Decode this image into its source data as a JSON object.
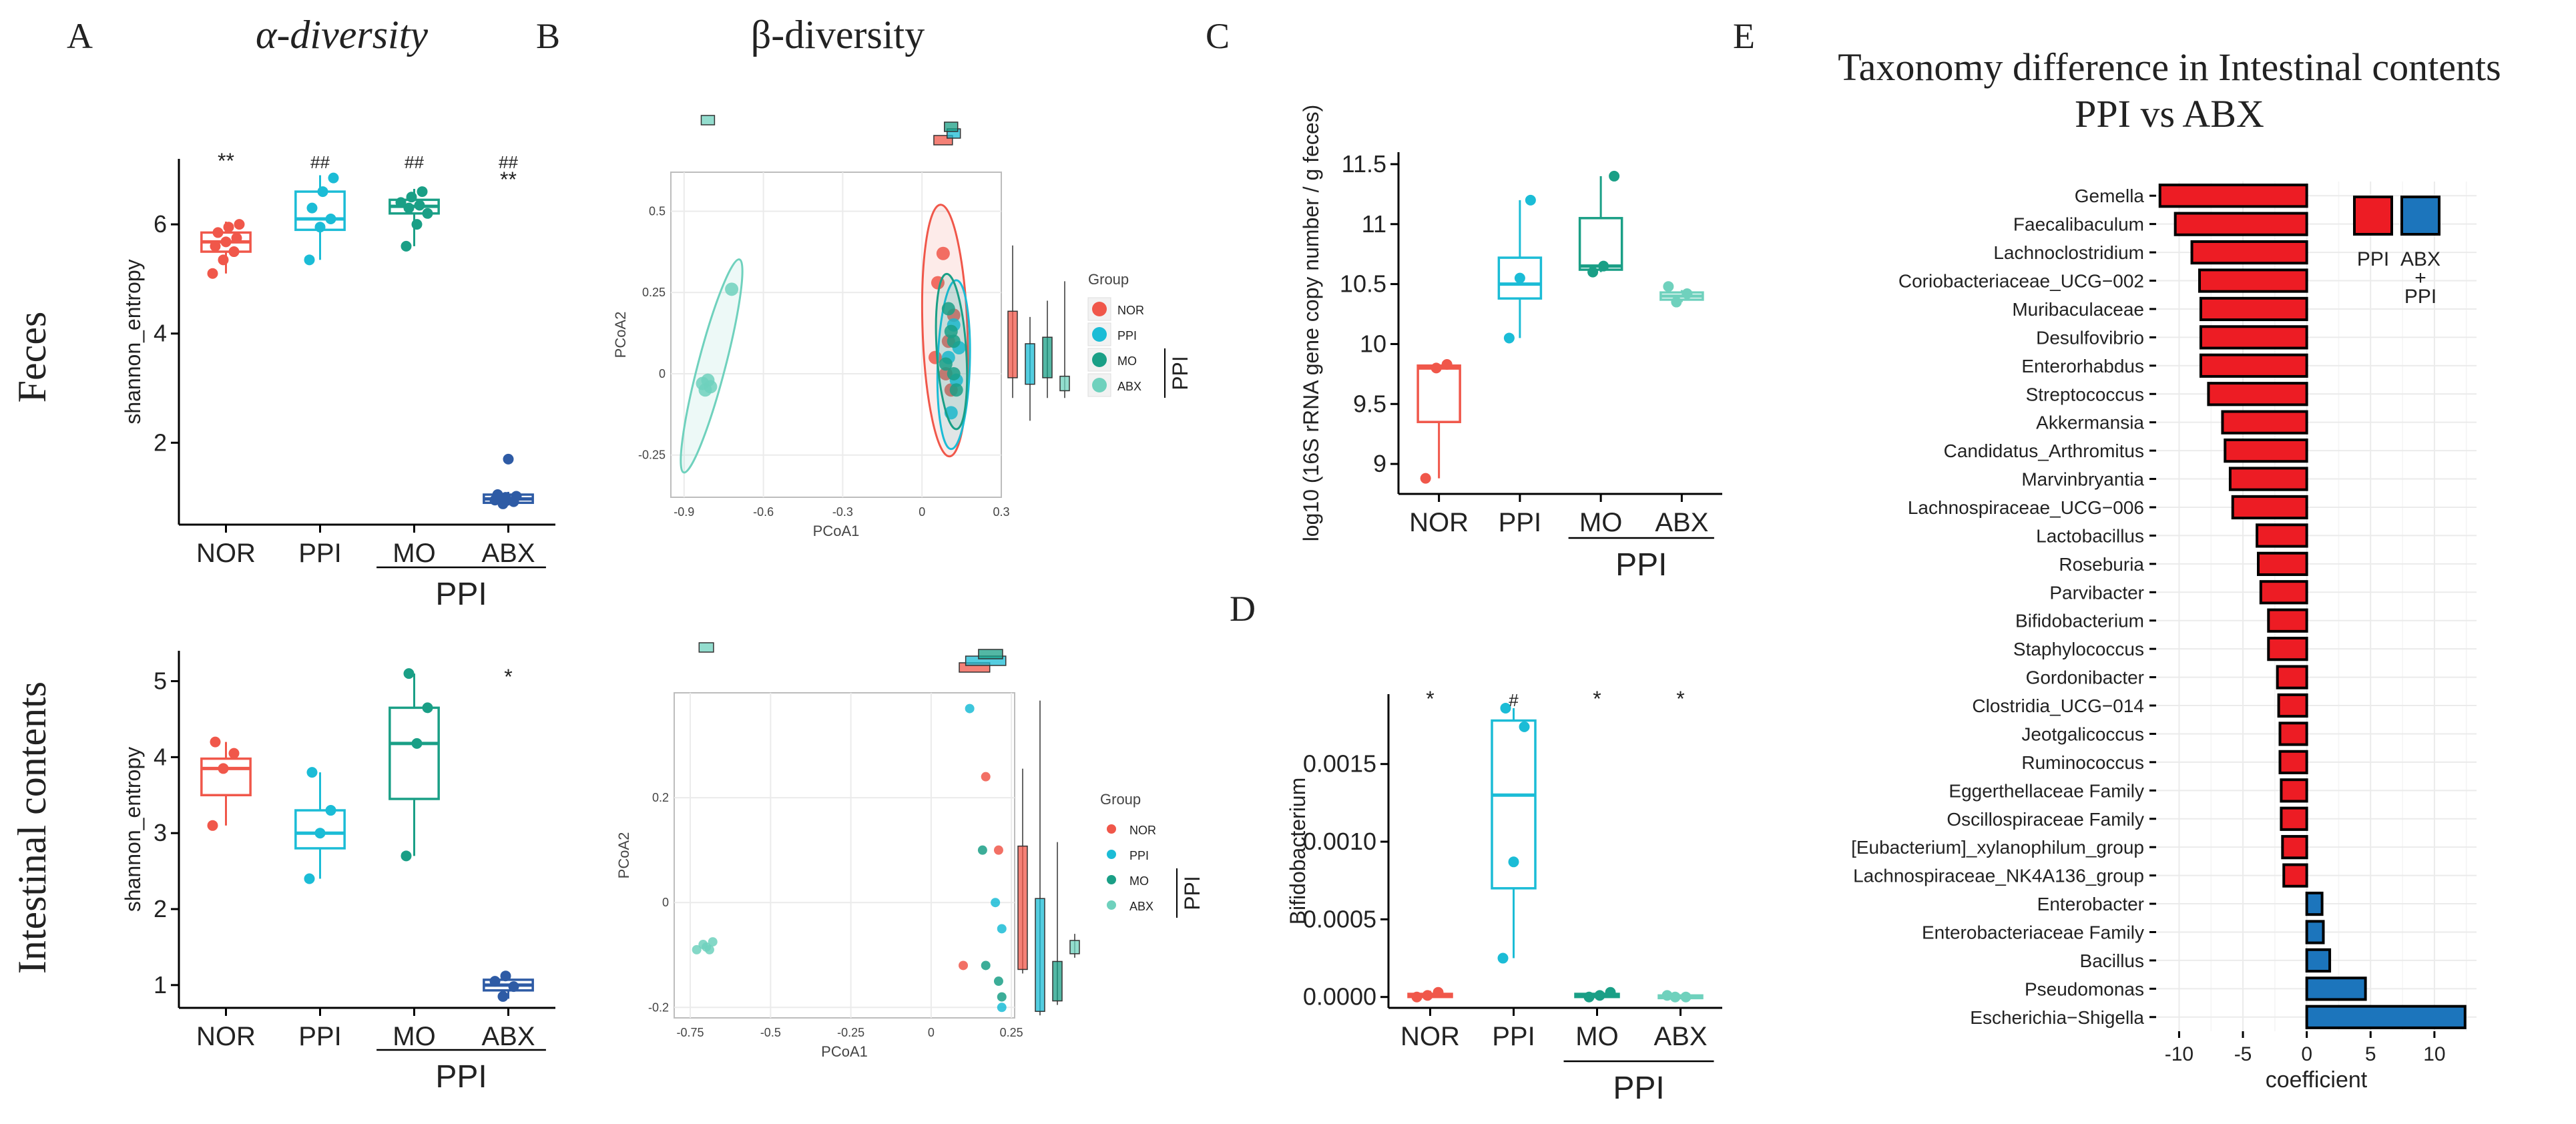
{
  "panels": {
    "A": "A",
    "B": "B",
    "C": "C",
    "D": "D",
    "E": "E"
  },
  "titles": {
    "alpha": "α-diversity",
    "beta": "β-diversity",
    "e_line1": "Taxonomy difference in Intestinal contents",
    "e_line2": "PPI vs ABX"
  },
  "row_labels": {
    "feces": "Feces",
    "intestinal": "Intestinal contents"
  },
  "colors": {
    "NOR": "#f0574a",
    "PPI": "#1bbcd6",
    "MO": "#1a9f86",
    "ABX": "#6fd1bd",
    "ABX_A": "#2e5ba5",
    "up": "#ed1c24",
    "down": "#1c75bc"
  },
  "common": {
    "ppi_group": "PPI"
  },
  "chart_data": [
    {
      "id": "A_feces",
      "type": "box",
      "ylabel": "shannon_entropy",
      "ylim": [
        0.5,
        7.2
      ],
      "yticks": [
        2,
        4,
        6
      ],
      "categories": [
        "NOR",
        "PPI",
        "MO",
        "ABX"
      ],
      "boxes": [
        {
          "q1": 5.5,
          "median": 5.68,
          "q3": 5.85,
          "lo": 5.1,
          "hi": 6.05,
          "points": [
            5.1,
            5.35,
            5.5,
            5.6,
            5.68,
            5.75,
            5.85,
            5.95,
            6.0
          ]
        },
        {
          "q1": 5.9,
          "median": 6.1,
          "q3": 6.6,
          "lo": 5.35,
          "hi": 6.9,
          "points": [
            5.35,
            5.95,
            6.1,
            6.3,
            6.6,
            6.85
          ]
        },
        {
          "q1": 6.2,
          "median": 6.33,
          "q3": 6.45,
          "lo": 5.6,
          "hi": 6.65,
          "points": [
            5.6,
            6.0,
            6.2,
            6.3,
            6.35,
            6.4,
            6.5,
            6.6
          ]
        },
        {
          "q1": 0.9,
          "median": 0.97,
          "q3": 1.05,
          "lo": 0.85,
          "hi": 1.1,
          "points": [
            0.88,
            0.92,
            0.95,
            1.0,
            1.02,
            1.05,
            1.7
          ]
        }
      ],
      "annotations": [
        "**",
        "##",
        "##",
        "##\n**"
      ]
    },
    {
      "id": "A_intestinal",
      "type": "box",
      "ylabel": "shannon_entropy",
      "ylim": [
        0.7,
        5.4
      ],
      "yticks": [
        1,
        2,
        3,
        4,
        5
      ],
      "categories": [
        "NOR",
        "PPI",
        "MO",
        "ABX"
      ],
      "boxes": [
        {
          "q1": 3.5,
          "median": 3.85,
          "q3": 3.98,
          "lo": 3.1,
          "hi": 4.2,
          "points": [
            3.1,
            3.85,
            4.05,
            4.2
          ]
        },
        {
          "q1": 2.8,
          "median": 3.0,
          "q3": 3.3,
          "lo": 2.4,
          "hi": 3.8,
          "points": [
            2.4,
            3.0,
            3.3,
            3.8
          ]
        },
        {
          "q1": 3.45,
          "median": 4.18,
          "q3": 4.65,
          "lo": 2.7,
          "hi": 5.1,
          "points": [
            2.7,
            4.18,
            4.65,
            5.1
          ]
        },
        {
          "q1": 0.93,
          "median": 1.0,
          "q3": 1.07,
          "lo": 0.82,
          "hi": 1.12,
          "points": [
            0.85,
            0.98,
            1.05,
            1.12
          ]
        }
      ],
      "annotations": [
        "",
        "",
        "",
        "*"
      ]
    },
    {
      "id": "B_feces",
      "type": "scatter",
      "xlabel": "PCoA1",
      "ylabel": "PCoA2",
      "xlim": [
        -0.95,
        0.3
      ],
      "ylim": [
        -0.38,
        0.62
      ],
      "xticks": [
        -0.9,
        -0.6,
        -0.3,
        0.0,
        0.3
      ],
      "yticks": [
        -0.25,
        0.0,
        0.25,
        0.5
      ],
      "series": [
        {
          "name": "NOR",
          "points": [
            [
              0.08,
              0.37
            ],
            [
              0.06,
              0.28
            ],
            [
              0.12,
              0.18
            ],
            [
              0.1,
              0.1
            ],
            [
              0.05,
              0.05
            ],
            [
              0.11,
              -0.05
            ],
            [
              0.09,
              0.0
            ]
          ]
        },
        {
          "name": "PPI",
          "points": [
            [
              0.12,
              0.15
            ],
            [
              0.1,
              0.05
            ],
            [
              0.13,
              -0.02
            ],
            [
              0.11,
              -0.12
            ],
            [
              0.14,
              0.08
            ]
          ]
        },
        {
          "name": "MO",
          "points": [
            [
              0.1,
              0.2
            ],
            [
              0.12,
              0.1
            ],
            [
              0.09,
              0.03
            ],
            [
              0.13,
              -0.05
            ],
            [
              0.11,
              0.13
            ],
            [
              0.12,
              0.0
            ]
          ]
        },
        {
          "name": "ABX",
          "points": [
            [
              -0.83,
              -0.03
            ],
            [
              -0.82,
              -0.05
            ],
            [
              -0.81,
              -0.02
            ],
            [
              -0.8,
              -0.04
            ],
            [
              -0.72,
              0.26
            ]
          ]
        }
      ],
      "legend_title": "Group",
      "legend": [
        "NOR",
        "PPI",
        "MO",
        "ABX"
      ]
    },
    {
      "id": "B_intestinal",
      "type": "scatter",
      "xlabel": "PCoA1",
      "ylabel": "PCoA2",
      "xlim": [
        -0.8,
        0.26
      ],
      "ylim": [
        -0.22,
        0.4
      ],
      "xticks": [
        -0.75,
        -0.5,
        -0.25,
        0.0,
        0.25
      ],
      "yticks": [
        -0.2,
        0.0,
        0.2
      ],
      "series": [
        {
          "name": "NOR",
          "points": [
            [
              0.17,
              0.24
            ],
            [
              0.21,
              0.1
            ],
            [
              0.1,
              -0.12
            ]
          ]
        },
        {
          "name": "PPI",
          "points": [
            [
              0.12,
              0.37
            ],
            [
              0.2,
              0.0
            ],
            [
              0.22,
              -0.05
            ],
            [
              0.22,
              -0.2
            ]
          ]
        },
        {
          "name": "MO",
          "points": [
            [
              0.16,
              0.1
            ],
            [
              0.17,
              -0.12
            ],
            [
              0.21,
              -0.15
            ],
            [
              0.22,
              -0.18
            ]
          ]
        },
        {
          "name": "ABX",
          "points": [
            [
              -0.71,
              -0.08
            ],
            [
              -0.69,
              -0.09
            ],
            [
              -0.73,
              -0.09
            ],
            [
              -0.68,
              -0.075
            ],
            [
              -0.7,
              -0.085
            ]
          ]
        }
      ],
      "legend_title": "Group",
      "legend": [
        "NOR",
        "PPI",
        "MO",
        "ABX"
      ]
    },
    {
      "id": "C",
      "type": "box",
      "ylabel": "log10 (16S rRNA gene copy number / g feces)",
      "ylim": [
        8.75,
        11.6
      ],
      "yticks": [
        9.0,
        9.5,
        10.0,
        10.5,
        11.0,
        11.5
      ],
      "categories": [
        "NOR",
        "PPI",
        "MO",
        "ABX"
      ],
      "boxes": [
        {
          "q1": 9.35,
          "median": 9.8,
          "q3": 9.82,
          "lo": 8.88,
          "hi": 9.83,
          "points": [
            8.88,
            9.8,
            9.83
          ]
        },
        {
          "q1": 10.38,
          "median": 10.5,
          "q3": 10.72,
          "lo": 10.05,
          "hi": 11.2,
          "points": [
            10.05,
            10.55,
            11.2
          ]
        },
        {
          "q1": 10.62,
          "median": 10.65,
          "q3": 11.05,
          "lo": 10.6,
          "hi": 11.4,
          "points": [
            10.6,
            10.65,
            11.4
          ]
        },
        {
          "q1": 10.37,
          "median": 10.4,
          "q3": 10.43,
          "lo": 10.35,
          "hi": 10.45,
          "points": [
            10.35,
            10.42,
            10.48
          ]
        }
      ]
    },
    {
      "id": "D",
      "type": "box",
      "ylabel": "Bifidobacterium",
      "ylim": [
        -7e-05,
        0.00195
      ],
      "yticks": [
        0.0,
        0.0005,
        0.001,
        0.0015
      ],
      "ytick_labels": [
        "0.0000",
        "0.0005",
        "0.0010",
        "0.0015"
      ],
      "categories": [
        "NOR",
        "PPI",
        "MO",
        "ABX"
      ],
      "boxes": [
        {
          "q1": 0.0,
          "median": 5e-06,
          "q3": 2e-05,
          "lo": 0.0,
          "hi": 4e-05,
          "points": [
            0.0,
            1e-05,
            3e-05
          ]
        },
        {
          "q1": 0.0007,
          "median": 0.0013,
          "q3": 0.00178,
          "lo": 0.00025,
          "hi": 0.00186,
          "points": [
            0.00025,
            0.00087,
            0.00174,
            0.00186
          ]
        },
        {
          "q1": 0.0,
          "median": 1e-05,
          "q3": 2e-05,
          "lo": 0.0,
          "hi": 3e-05,
          "points": [
            0.0,
            1e-05,
            3e-05
          ]
        },
        {
          "q1": 0.0,
          "median": 0.0,
          "q3": 1e-05,
          "lo": 0.0,
          "hi": 1e-05,
          "points": [
            0.0,
            0.0,
            1e-05
          ]
        }
      ],
      "annotations": [
        "*",
        "#",
        "*",
        "*"
      ]
    },
    {
      "id": "E",
      "type": "bar",
      "orientation": "horizontal",
      "xlabel": "coefficient",
      "xlim": [
        -11.8,
        13.3
      ],
      "xticks": [
        -10,
        -5,
        0,
        5,
        10
      ],
      "categories": [
        "Gemella",
        "Faecalibaculum",
        "Lachnoclostridium",
        "Coriobacteriaceae_UCG−002",
        "Muribaculaceae",
        "Desulfovibrio",
        "Enterorhabdus",
        "Streptococcus",
        "Akkermansia",
        "Candidatus_Arthromitus",
        "Marvinbryantia",
        "Lachnospiraceae_UCG−006",
        "Lactobacillus",
        "Roseburia",
        "Parvibacter",
        "Bifidobacterium",
        "Staphylococcus",
        "Gordonibacter",
        "Clostridia_UCG−014",
        "Jeotgalicoccus",
        "Ruminococcus",
        "Eggerthellaceae Family",
        "Oscillospiraceae Family",
        "[Eubacterium]_xylanophilum_group",
        "Lachnospiraceae_NK4A136_group",
        "Enterobacter",
        "Enterobacteriaceae Family",
        "Bacillus",
        "Pseudomonas",
        "Escherichia−Shigella"
      ],
      "values": [
        -11.5,
        -10.3,
        -9.0,
        -8.4,
        -8.3,
        -8.3,
        -8.3,
        -7.7,
        -6.6,
        -6.4,
        -6.0,
        -5.8,
        -3.9,
        -3.8,
        -3.6,
        -3.0,
        -3.0,
        -2.3,
        -2.2,
        -2.1,
        -2.1,
        -2.0,
        -2.0,
        -1.9,
        -1.8,
        1.2,
        1.3,
        1.8,
        4.6,
        12.4
      ],
      "legend": [
        "PPI",
        "ABX\n+\nPPI"
      ]
    }
  ]
}
